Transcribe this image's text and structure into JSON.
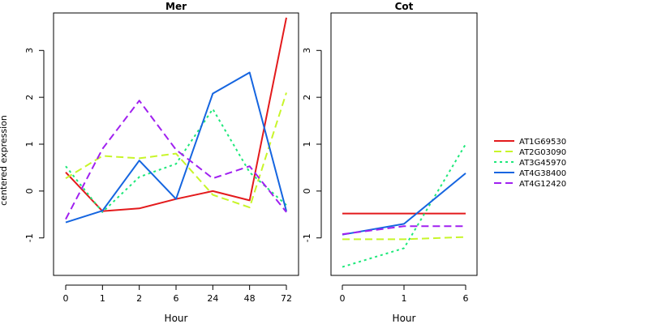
{
  "figure": {
    "ylabel": "centered expression",
    "legend_position": "right",
    "legend": [
      {
        "name": "AT1G69530",
        "color": "#e31a1c",
        "dash": "solid"
      },
      {
        "name": "AT2G03090",
        "color": "#c8f52a",
        "dash": "dashed"
      },
      {
        "name": "AT3G45970",
        "color": "#1ee87a",
        "dash": "dotted"
      },
      {
        "name": "AT4G38400",
        "color": "#1565e0",
        "dash": "solid"
      },
      {
        "name": "AT4G12420",
        "color": "#a020f0",
        "dash": "dashed"
      }
    ]
  },
  "chart_data": [
    {
      "type": "line",
      "title": "Mer",
      "xlabel": "Hour",
      "ylabel": "centered expression",
      "categories": [
        "0",
        "1",
        "2",
        "6",
        "24",
        "48",
        "72"
      ],
      "ylim": [
        -1.8,
        3.8
      ],
      "yticks": [
        -1,
        0,
        1,
        2,
        3
      ],
      "grid": false,
      "series": [
        {
          "name": "AT1G69530",
          "values": [
            0.4,
            -0.43,
            -0.37,
            -0.17,
            0.0,
            -0.2,
            3.7
          ]
        },
        {
          "name": "AT2G03090",
          "values": [
            0.27,
            0.75,
            0.7,
            0.8,
            -0.08,
            -0.35,
            2.1
          ]
        },
        {
          "name": "AT3G45970",
          "values": [
            0.53,
            -0.45,
            0.3,
            0.58,
            1.75,
            0.4,
            -0.3
          ]
        },
        {
          "name": "AT4G38400",
          "values": [
            -0.67,
            -0.42,
            0.65,
            -0.17,
            2.08,
            2.53,
            -0.43
          ]
        },
        {
          "name": "AT4G12420",
          "values": [
            -0.6,
            0.9,
            1.93,
            0.88,
            0.27,
            0.53,
            -0.45
          ]
        }
      ]
    },
    {
      "type": "line",
      "title": "Cot",
      "xlabel": "Hour",
      "ylabel": "",
      "categories": [
        "0",
        "1",
        "6"
      ],
      "ylim": [
        -1.8,
        3.8
      ],
      "yticks": [
        -1,
        0,
        1,
        2,
        3
      ],
      "grid": false,
      "series": [
        {
          "name": "AT1G69530",
          "values": [
            -0.48,
            -0.48,
            -0.48
          ]
        },
        {
          "name": "AT2G03090",
          "values": [
            -1.03,
            -1.03,
            -0.98
          ]
        },
        {
          "name": "AT3G45970",
          "values": [
            -1.62,
            -1.22,
            1.0
          ]
        },
        {
          "name": "AT4G38400",
          "values": [
            -0.93,
            -0.7,
            0.38
          ]
        },
        {
          "name": "AT4G12420",
          "values": [
            -0.92,
            -0.75,
            -0.75
          ]
        }
      ]
    }
  ]
}
